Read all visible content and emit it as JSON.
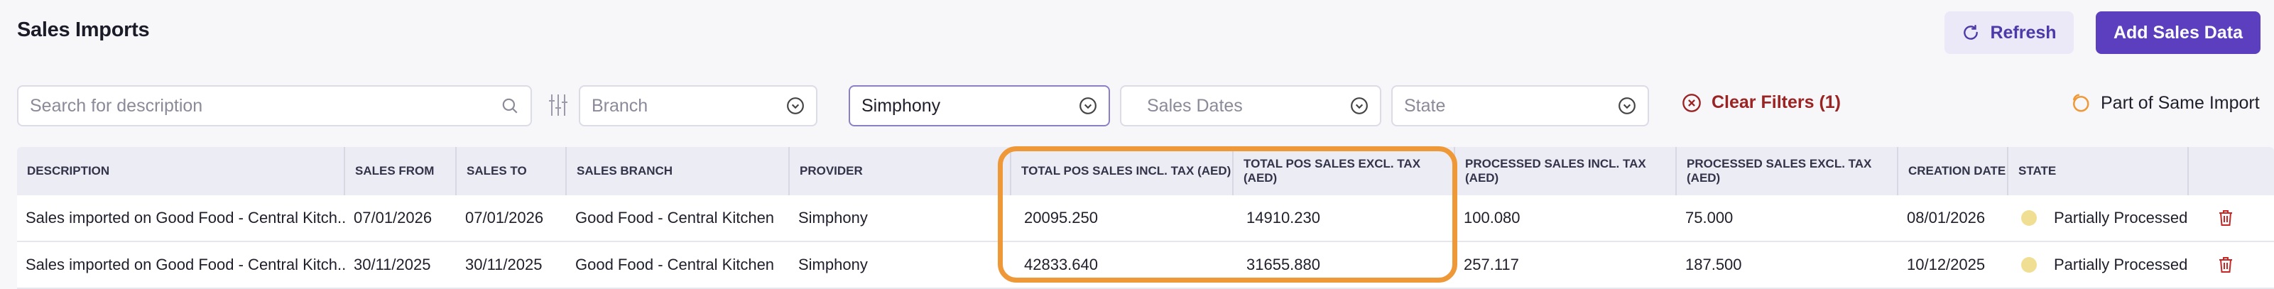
{
  "page": {
    "title": "Sales Imports"
  },
  "header": {
    "refresh_label": "Refresh",
    "add_label": "Add Sales Data"
  },
  "filters": {
    "search_placeholder": "Search for description",
    "branch_placeholder": "Branch",
    "provider_value": "Simphony",
    "sales_dates_placeholder": "Sales Dates",
    "state_placeholder": "State",
    "clear_label": "Clear Filters (1)",
    "same_import_label": "Part of Same Import"
  },
  "table": {
    "columns": [
      "Description",
      "Sales From",
      "Sales To",
      "Sales Branch",
      "Provider",
      "Total POS Sales Incl. Tax (AED)",
      "Total POS Sales Excl. Tax (AED)",
      "Processed Sales Incl. Tax (AED)",
      "Processed Sales Excl. Tax (AED)",
      "Creation Date",
      "State",
      ""
    ],
    "rows": [
      {
        "description": "Sales imported on Good Food - Central Kitch...",
        "sales_from": "07/01/2026",
        "sales_to": "07/01/2026",
        "branch": "Good Food - Central Kitchen",
        "provider": "Simphony",
        "total_incl": "20095.250",
        "total_excl": "14910.230",
        "proc_incl": "100.080",
        "proc_excl": "75.000",
        "created": "08/01/2026",
        "state": "Partially Processed"
      },
      {
        "description": "Sales imported on Good Food - Central Kitch...",
        "sales_from": "30/11/2025",
        "sales_to": "30/11/2025",
        "branch": "Good Food - Central Kitchen",
        "provider": "Simphony",
        "total_incl": "42833.640",
        "total_excl": "31655.880",
        "proc_incl": "257.117",
        "proc_excl": "187.500",
        "created": "10/12/2025",
        "state": "Partially Processed"
      }
    ]
  },
  "colors": {
    "accent": "#5b3fbf",
    "danger": "#9b2323",
    "highlight": "#ef9838",
    "state_dot": "#f0df93"
  }
}
